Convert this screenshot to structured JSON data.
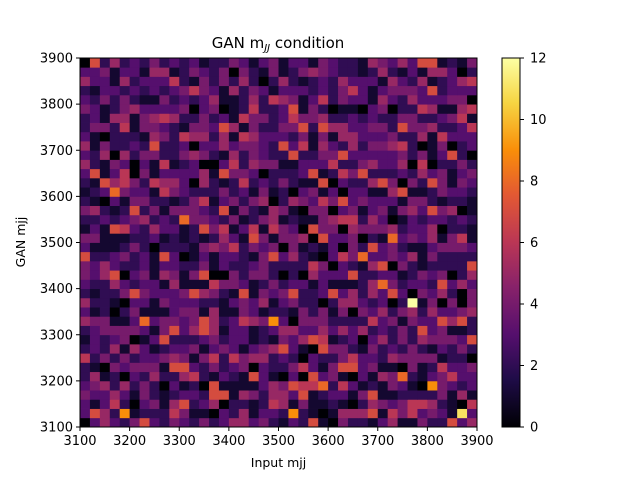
{
  "chart_data": {
    "type": "heatmap",
    "title": "GAN m",
    "title_subscript": "JJ",
    "title_suffix": " condition",
    "xlabel": "Input mjj",
    "ylabel": "GAN mjj",
    "xlim": [
      3100,
      3900
    ],
    "ylim": [
      3100,
      3900
    ],
    "x_ticks": [
      3100,
      3200,
      3300,
      3400,
      3500,
      3600,
      3700,
      3800,
      3900
    ],
    "y_ticks": [
      3100,
      3200,
      3300,
      3400,
      3500,
      3600,
      3700,
      3800,
      3900
    ],
    "bins_x": 40,
    "bins_y": 40,
    "colormap": "inferno",
    "colorbar": {
      "min": 0,
      "max": 12,
      "ticks": [
        0,
        2,
        4,
        6,
        8,
        10,
        12
      ]
    },
    "notable_bins": [
      {
        "x": 3770,
        "y": 3370,
        "count": 12
      },
      {
        "x": 3870,
        "y": 3130,
        "count": 11
      },
      {
        "x": 3810,
        "y": 3190,
        "count": 9
      },
      {
        "x": 3530,
        "y": 3130,
        "count": 9
      },
      {
        "x": 3490,
        "y": 3330,
        "count": 9
      },
      {
        "x": 3230,
        "y": 3330,
        "count": 8
      },
      {
        "x": 3190,
        "y": 3130,
        "count": 9
      },
      {
        "x": 3310,
        "y": 3550,
        "count": 8
      },
      {
        "x": 3710,
        "y": 3410,
        "count": 8
      },
      {
        "x": 3750,
        "y": 3210,
        "count": 8
      },
      {
        "x": 3850,
        "y": 3690,
        "count": 7
      },
      {
        "x": 3730,
        "y": 3510,
        "count": 8
      },
      {
        "x": 3170,
        "y": 3610,
        "count": 8
      },
      {
        "x": 3670,
        "y": 3470,
        "count": 8
      },
      {
        "x": 3810,
        "y": 3630,
        "count": 7
      },
      {
        "x": 3590,
        "y": 3190,
        "count": 8
      },
      {
        "x": 3210,
        "y": 3390,
        "count": 7
      },
      {
        "x": 3350,
        "y": 3310,
        "count": 7
      }
    ],
    "typical_count": 3
  }
}
